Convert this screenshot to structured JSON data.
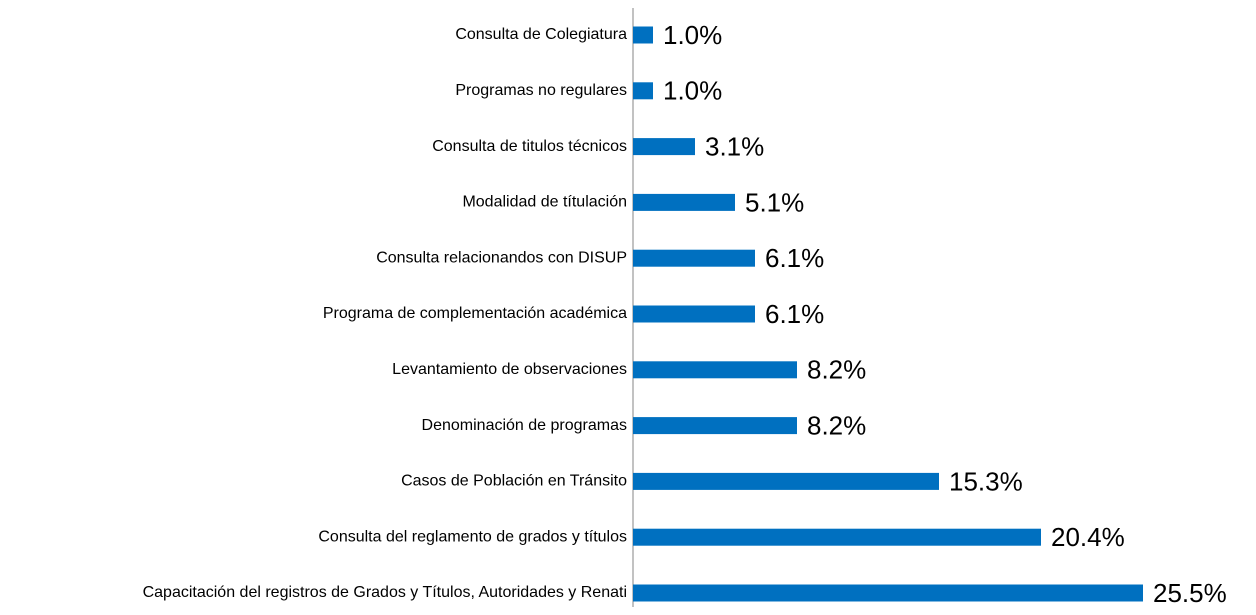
{
  "chart_data": {
    "type": "bar",
    "orientation": "horizontal",
    "categories": [
      "Consulta de Colegiatura",
      "Programas no regulares",
      "Consulta de titulos técnicos",
      "Modalidad de títulación",
      "Consulta relacionandos con DISUP",
      "Programa de complementación académica",
      "Levantamiento de observaciones",
      "Denominación de programas",
      "Casos de Población en Tránsito",
      "Consulta del reglamento de grados y títulos",
      "Capacitación del registros de Grados y Títulos, Autoridades y Renati"
    ],
    "values": [
      1.0,
      1.0,
      3.1,
      5.1,
      6.1,
      6.1,
      8.2,
      8.2,
      15.3,
      20.4,
      25.5
    ],
    "value_labels": [
      "1.0%",
      "1.0%",
      "3.1%",
      "5.1%",
      "6.1%",
      "6.1%",
      "8.2%",
      "8.2%",
      "15.3%",
      "20.4%",
      "25.5%"
    ],
    "color": "#0070c0"
  }
}
